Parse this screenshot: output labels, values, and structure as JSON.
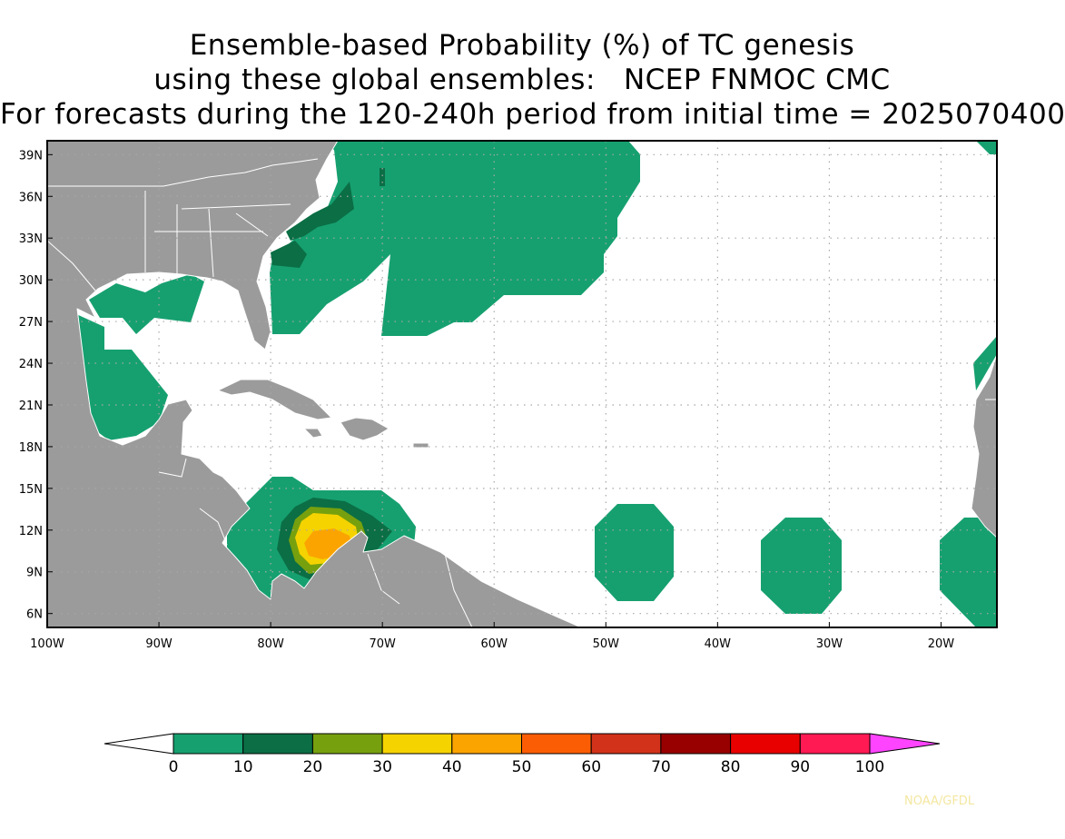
{
  "title": {
    "line1": "Ensemble-based Probability (%) of TC genesis",
    "line2": "using these global ensembles:   NCEP FNMOC CMC",
    "line3": "For forecasts during the 120-240h period from initial time = 2025070400"
  },
  "map": {
    "lon_range": [
      -100,
      -15
    ],
    "lat_range": [
      5,
      40
    ],
    "lat_ticks": [
      {
        "value": 39,
        "label": "39N"
      },
      {
        "value": 36,
        "label": "36N"
      },
      {
        "value": 33,
        "label": "33N"
      },
      {
        "value": 30,
        "label": "30N"
      },
      {
        "value": 27,
        "label": "27N"
      },
      {
        "value": 24,
        "label": "24N"
      },
      {
        "value": 21,
        "label": "21N"
      },
      {
        "value": 18,
        "label": "18N"
      },
      {
        "value": 15,
        "label": "15N"
      },
      {
        "value": 12,
        "label": "12N"
      },
      {
        "value": 9,
        "label": "9N"
      },
      {
        "value": 6,
        "label": "6N"
      }
    ],
    "lon_ticks": [
      {
        "value": -100,
        "label": "100W"
      },
      {
        "value": -90,
        "label": "90W"
      },
      {
        "value": -80,
        "label": "80W"
      },
      {
        "value": -70,
        "label": "70W"
      },
      {
        "value": -60,
        "label": "60W"
      },
      {
        "value": -50,
        "label": "50W"
      },
      {
        "value": -40,
        "label": "40W"
      },
      {
        "value": -30,
        "label": "30W"
      },
      {
        "value": -20,
        "label": "20W"
      }
    ],
    "grid": "dotted",
    "colors": {
      "land": "#9b9b9b",
      "ocean": "#ffffff",
      "coast": "#ffffff"
    }
  },
  "colorbar": {
    "labels": [
      "0",
      "10",
      "20",
      "30",
      "40",
      "50",
      "60",
      "70",
      "80",
      "90",
      "100"
    ],
    "colors": [
      "#16a070",
      "#0b6e45",
      "#77a00e",
      "#f5d300",
      "#fba400",
      "#fb5d05",
      "#d2321a",
      "#980000",
      "#e80000",
      "#ff1a54"
    ],
    "under_color": "#ffffff",
    "over_color": "#ff44ff"
  },
  "credit": {
    "text": "NOAA/GFDL",
    "color": "#f3e7a0"
  }
}
